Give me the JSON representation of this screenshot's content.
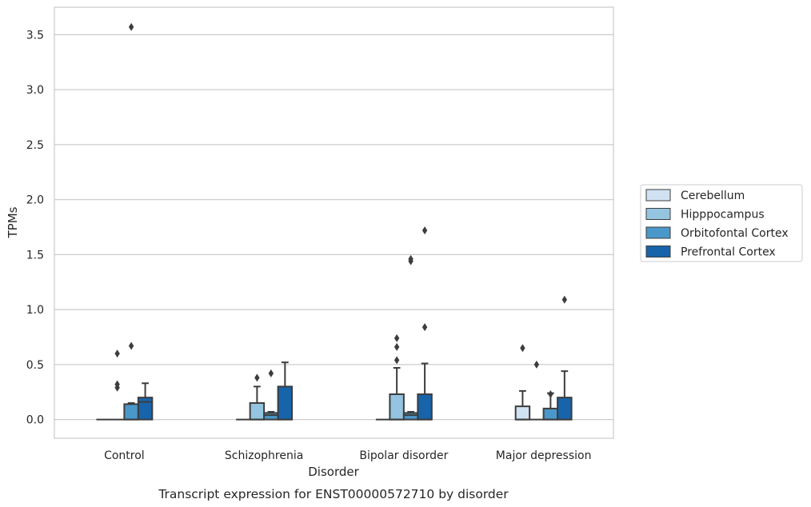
{
  "chart_data": {
    "type": "box",
    "caption": "Transcript expression for ENST00000572710 by disorder",
    "xlabel": "Disorder",
    "ylabel": "TPMs",
    "ylim": [
      -0.17,
      3.75
    ],
    "yticks": [
      0.0,
      0.5,
      1.0,
      1.5,
      2.0,
      2.5,
      3.0,
      3.5
    ],
    "ytick_labels": [
      "0.0",
      "0.5",
      "1.0",
      "1.5",
      "2.0",
      "2.5",
      "3.0",
      "3.5"
    ],
    "grid": true,
    "legend_position": "right",
    "categories": [
      "Control",
      "Schizophrenia",
      "Bipolar disorder",
      "Major depression"
    ],
    "series": [
      {
        "name": "Cerebellum",
        "color": "#d0e1f2",
        "boxes": [
          {
            "q1": 0.0,
            "median": 0.0,
            "q3": 0.0,
            "whisker_low": 0.0,
            "whisker_high": 0.0,
            "outliers": []
          },
          {
            "q1": 0.0,
            "median": 0.0,
            "q3": 0.0,
            "whisker_low": 0.0,
            "whisker_high": 0.0,
            "outliers": []
          },
          {
            "q1": 0.0,
            "median": 0.0,
            "q3": 0.0,
            "whisker_low": 0.0,
            "whisker_high": 0.0,
            "outliers": []
          },
          {
            "q1": 0.0,
            "median": 0.0,
            "q3": 0.12,
            "whisker_low": 0.0,
            "whisker_high": 0.26,
            "outliers": [
              0.65
            ]
          }
        ]
      },
      {
        "name": "Hipppocampus",
        "color": "#94c4df",
        "boxes": [
          {
            "q1": 0.0,
            "median": 0.0,
            "q3": 0.0,
            "whisker_low": 0.0,
            "whisker_high": 0.0,
            "outliers": [
              0.6,
              0.32,
              0.29
            ]
          },
          {
            "q1": 0.0,
            "median": 0.0,
            "q3": 0.15,
            "whisker_low": 0.0,
            "whisker_high": 0.3,
            "outliers": [
              0.38
            ]
          },
          {
            "q1": 0.0,
            "median": 0.0,
            "q3": 0.23,
            "whisker_low": 0.0,
            "whisker_high": 0.47,
            "outliers": [
              0.74,
              0.66,
              0.54
            ]
          },
          {
            "q1": 0.0,
            "median": 0.0,
            "q3": 0.0,
            "whisker_low": 0.0,
            "whisker_high": 0.0,
            "outliers": [
              0.5
            ]
          }
        ]
      },
      {
        "name": "Orbitofontal Cortex",
        "color": "#4a98c9",
        "boxes": [
          {
            "q1": 0.0,
            "median": 0.0,
            "q3": 0.14,
            "whisker_low": 0.0,
            "whisker_high": 0.15,
            "outliers": [
              0.67,
              3.57
            ]
          },
          {
            "q1": 0.0,
            "median": 0.04,
            "q3": 0.06,
            "whisker_low": 0.0,
            "whisker_high": 0.07,
            "outliers": [
              0.42
            ]
          },
          {
            "q1": 0.0,
            "median": 0.04,
            "q3": 0.06,
            "whisker_low": 0.0,
            "whisker_high": 0.07,
            "outliers": [
              1.44,
              1.46
            ]
          },
          {
            "q1": 0.0,
            "median": 0.0,
            "q3": 0.1,
            "whisker_low": 0.0,
            "whisker_high": 0.24,
            "outliers": [
              0.23
            ]
          }
        ]
      },
      {
        "name": "Prefrontal Cortex",
        "color": "#1764ab",
        "boxes": [
          {
            "q1": 0.0,
            "median": 0.16,
            "q3": 0.2,
            "whisker_low": 0.0,
            "whisker_high": 0.33,
            "outliers": []
          },
          {
            "q1": 0.0,
            "median": 0.0,
            "q3": 0.3,
            "whisker_low": 0.0,
            "whisker_high": 0.52,
            "outliers": []
          },
          {
            "q1": 0.0,
            "median": 0.0,
            "q3": 0.23,
            "whisker_low": 0.0,
            "whisker_high": 0.51,
            "outliers": [
              0.84,
              1.72
            ]
          },
          {
            "q1": 0.0,
            "median": 0.0,
            "q3": 0.2,
            "whisker_low": 0.0,
            "whisker_high": 0.44,
            "outliers": [
              1.09
            ]
          }
        ]
      }
    ]
  }
}
